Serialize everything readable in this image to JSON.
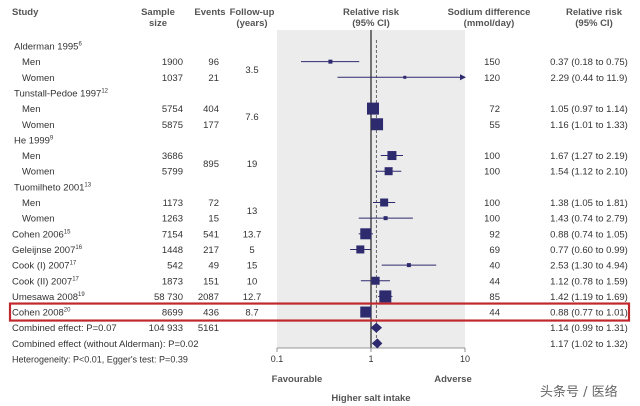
{
  "chart_data": {
    "type": "forest",
    "x_scale": "log",
    "xlim": [
      0.1,
      10
    ],
    "x_ticks": [
      "0.1",
      "1",
      "10"
    ],
    "x_tick_values": [
      0.1,
      1,
      10
    ],
    "headers": {
      "study": "Study",
      "sample_size": [
        "Sample",
        "size"
      ],
      "events": "Events",
      "follow_up": [
        "Follow-up",
        "(years)"
      ],
      "rr": [
        "Relative risk",
        "(95% CI)"
      ],
      "sodium": [
        "Sodium difference",
        "(mmol/day)"
      ],
      "rr_text": [
        "Relative risk",
        "(95% CI)"
      ]
    },
    "rows": [
      {
        "kind": "group",
        "label": "Alderman 1995",
        "ref": "6"
      },
      {
        "kind": "sub",
        "label": "Men",
        "size": "1900",
        "events": "96",
        "rr": 0.37,
        "lo": 0.18,
        "hi": 0.75,
        "sodium": "150",
        "rr_text": "0.37 (0.18 to 0.75)",
        "w": 4
      },
      {
        "kind": "sub",
        "label": "Women",
        "size": "1037",
        "events": "21",
        "rr": 2.29,
        "lo": 0.44,
        "hi": 11.9,
        "sodium": "120",
        "rr_text": "2.29 (0.44 to 11.9)",
        "w": 3,
        "arrow": true
      },
      {
        "kind": "group",
        "label": "Tunstall-Pedoe 1997",
        "ref": "12"
      },
      {
        "kind": "sub",
        "label": "Men",
        "size": "5754",
        "events": "404",
        "rr": 1.05,
        "lo": 0.97,
        "hi": 1.14,
        "sodium": "72",
        "rr_text": "1.05 (0.97 to 1.14)",
        "w": 12
      },
      {
        "kind": "sub",
        "label": "Women",
        "size": "5875",
        "events": "177",
        "rr": 1.16,
        "lo": 1.01,
        "hi": 1.33,
        "sodium": "55",
        "rr_text": "1.16 (1.01 to 1.33)",
        "w": 12
      },
      {
        "kind": "group",
        "label": "He 1999",
        "ref": "9"
      },
      {
        "kind": "sub",
        "label": "Men",
        "size": "3686",
        "events": "",
        "rr": 1.67,
        "lo": 1.27,
        "hi": 2.19,
        "sodium": "100",
        "rr_text": "1.67 (1.27 to 2.19)",
        "w": 9
      },
      {
        "kind": "sub",
        "label": "Women",
        "size": "5799",
        "events": "",
        "rr": 1.54,
        "lo": 1.12,
        "hi": 2.1,
        "sodium": "100",
        "rr_text": "1.54 (1.12 to 2.10)",
        "w": 8
      },
      {
        "kind": "group",
        "label": "Tuomilheto 2001",
        "ref": "13"
      },
      {
        "kind": "sub",
        "label": "Men",
        "size": "1173",
        "events": "72",
        "rr": 1.38,
        "lo": 1.05,
        "hi": 1.81,
        "sodium": "100",
        "rr_text": "1.38 (1.05 to 1.81)",
        "w": 8
      },
      {
        "kind": "sub",
        "label": "Women",
        "size": "1263",
        "events": "15",
        "rr": 1.43,
        "lo": 0.74,
        "hi": 2.79,
        "sodium": "100",
        "rr_text": "1.43 (0.74 to 2.79)",
        "w": 4
      },
      {
        "kind": "study",
        "label": "Cohen 2006",
        "ref": "15",
        "size": "7154",
        "events": "541",
        "fu": "13.7",
        "rr": 0.88,
        "lo": 0.74,
        "hi": 1.05,
        "sodium": "92",
        "rr_text": "0.88 (0.74 to 1.05)",
        "w": 11
      },
      {
        "kind": "study",
        "label": "Geleijnse 2007",
        "ref": "16",
        "size": "1448",
        "events": "217",
        "fu": "5",
        "rr": 0.77,
        "lo": 0.6,
        "hi": 0.99,
        "sodium": "69",
        "rr_text": "0.77 (0.60 to 0.99)",
        "w": 8
      },
      {
        "kind": "study",
        "label": "Cook (I) 2007",
        "ref": "17",
        "size": "542",
        "events": "49",
        "fu": "15",
        "rr": 2.53,
        "lo": 1.3,
        "hi": 4.94,
        "sodium": "40",
        "rr_text": "2.53 (1.30 to 4.94)",
        "w": 4
      },
      {
        "kind": "study",
        "label": "Cook (II) 2007",
        "ref": "17",
        "size": "1873",
        "events": "151",
        "fu": "10",
        "rr": 1.12,
        "lo": 0.78,
        "hi": 1.59,
        "sodium": "44",
        "rr_text": "1.12 (0.78 to 1.59)",
        "w": 8
      },
      {
        "kind": "study",
        "label": "Umesawa 2008",
        "ref": "19",
        "size": "58 730",
        "events": "2087",
        "fu": "12.7",
        "rr": 1.42,
        "lo": 1.19,
        "hi": 1.69,
        "sodium": "85",
        "rr_text": "1.42 (1.19 to 1.69)",
        "w": 12
      },
      {
        "kind": "study",
        "label": "Cohen 2008",
        "ref": "20",
        "size": "8699",
        "events": "436",
        "fu": "8.7",
        "rr": 0.88,
        "lo": 0.77,
        "hi": 1.01,
        "sodium": "44",
        "rr_text": "0.88 (0.77 to 1.01)",
        "w": 11,
        "highlight": true
      },
      {
        "kind": "summary",
        "label": "Combined effect: P=0.07",
        "size": "104 933",
        "events": "5161",
        "rr": 1.14,
        "lo": 0.99,
        "hi": 1.31,
        "rr_text": "1.14 (0.99 to 1.31)"
      },
      {
        "kind": "summary",
        "label": "Combined effect (without Alderman): P=0.02",
        "rr": 1.17,
        "lo": 1.02,
        "hi": 1.32,
        "rr_text": "1.17 (1.02 to 1.32)"
      },
      {
        "kind": "note",
        "label": "Heterogeneity: P<0.01, Egger's test: P=0.39"
      }
    ],
    "merged_follow_up": [
      {
        "rows": [
          1,
          2
        ],
        "value": "3.5"
      },
      {
        "rows": [
          4,
          5
        ],
        "value": "7.6"
      },
      {
        "rows": [
          7,
          8
        ],
        "value": "19"
      },
      {
        "rows": [
          10,
          11
        ],
        "value": "13"
      }
    ],
    "merged_events": [
      {
        "rows": [
          7,
          8
        ],
        "value": "895"
      }
    ],
    "dashed_line_at": 1.14,
    "x_left_label": "Favourable",
    "x_right_label": "Adverse",
    "x_title": "Higher salt intake",
    "colors": {
      "marker": "#2e2a6e",
      "highlight_box": "#c0282d",
      "panel": "#ececec",
      "text": "#333333",
      "header": "#555555"
    }
  },
  "watermark": "头条号 / 医络"
}
